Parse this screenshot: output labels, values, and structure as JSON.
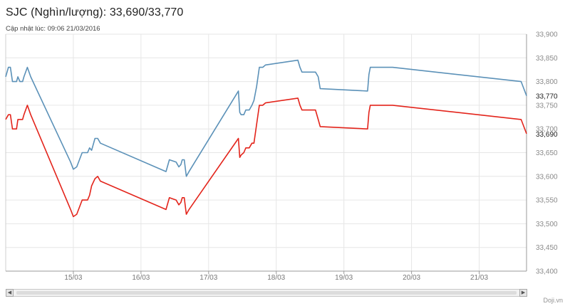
{
  "header": {
    "title": "SJC (Nghìn/lượng): 33,690/33,770",
    "updated": "Cập nhật lúc: 09:06 21/03/2016"
  },
  "credit": "Doji.vn",
  "scrollbar": {
    "left_icon": "arrow-left-icon",
    "right_icon": "arrow-right-icon"
  },
  "chart_data": {
    "type": "line",
    "x_unit": "day",
    "x_range": [
      14.0,
      21.7
    ],
    "xticks": [
      {
        "x": 15,
        "label": "15/03"
      },
      {
        "x": 16,
        "label": "16/03"
      },
      {
        "x": 17,
        "label": "17/03"
      },
      {
        "x": 18,
        "label": "18/03"
      },
      {
        "x": 19,
        "label": "19/03"
      },
      {
        "x": 20,
        "label": "20/03"
      },
      {
        "x": 21,
        "label": "21/03"
      }
    ],
    "ylim": [
      33400,
      33900
    ],
    "yticks": [
      33400,
      33450,
      33500,
      33550,
      33600,
      33650,
      33700,
      33750,
      33800,
      33850,
      33900
    ],
    "ytick_labels": [
      "33,400",
      "33,450",
      "33,500",
      "33,550",
      "33,600",
      "33,650",
      "33,700",
      "33,750",
      "33,800",
      "33,850",
      "33,900"
    ],
    "grid": true,
    "series": [
      {
        "color": "#5b91b8",
        "end_label": "33,770",
        "points": [
          [
            14.0,
            33810
          ],
          [
            14.04,
            33830
          ],
          [
            14.07,
            33830
          ],
          [
            14.1,
            33800
          ],
          [
            14.16,
            33800
          ],
          [
            14.18,
            33810
          ],
          [
            14.21,
            33800
          ],
          [
            14.25,
            33800
          ],
          [
            14.27,
            33810
          ],
          [
            14.32,
            33830
          ],
          [
            14.37,
            33810
          ],
          [
            14.96,
            33630
          ],
          [
            15.0,
            33615
          ],
          [
            15.05,
            33620
          ],
          [
            15.13,
            33650
          ],
          [
            15.21,
            33650
          ],
          [
            15.24,
            33660
          ],
          [
            15.27,
            33655
          ],
          [
            15.32,
            33680
          ],
          [
            15.36,
            33680
          ],
          [
            15.4,
            33670
          ],
          [
            16.37,
            33610
          ],
          [
            16.42,
            33635
          ],
          [
            16.52,
            33630
          ],
          [
            16.56,
            33620
          ],
          [
            16.59,
            33625
          ],
          [
            16.61,
            33635
          ],
          [
            16.64,
            33635
          ],
          [
            16.67,
            33600
          ],
          [
            16.71,
            33610
          ],
          [
            17.44,
            33780
          ],
          [
            17.46,
            33735
          ],
          [
            17.48,
            33730
          ],
          [
            17.52,
            33730
          ],
          [
            17.55,
            33740
          ],
          [
            17.6,
            33740
          ],
          [
            17.64,
            33750
          ],
          [
            17.67,
            33760
          ],
          [
            17.71,
            33790
          ],
          [
            17.75,
            33830
          ],
          [
            17.8,
            33830
          ],
          [
            17.84,
            33835
          ],
          [
            18.32,
            33845
          ],
          [
            18.35,
            33830
          ],
          [
            18.38,
            33820
          ],
          [
            18.58,
            33820
          ],
          [
            18.62,
            33810
          ],
          [
            18.65,
            33785
          ],
          [
            19.35,
            33780
          ],
          [
            19.37,
            33815
          ],
          [
            19.39,
            33830
          ],
          [
            19.72,
            33830
          ],
          [
            21.62,
            33800
          ],
          [
            21.7,
            33770
          ]
        ]
      },
      {
        "color": "#e3241b",
        "end_label": "33,690",
        "points": [
          [
            14.0,
            33720
          ],
          [
            14.04,
            33730
          ],
          [
            14.07,
            33730
          ],
          [
            14.1,
            33700
          ],
          [
            14.16,
            33700
          ],
          [
            14.18,
            33720
          ],
          [
            14.21,
            33720
          ],
          [
            14.25,
            33720
          ],
          [
            14.27,
            33730
          ],
          [
            14.32,
            33750
          ],
          [
            14.37,
            33730
          ],
          [
            14.96,
            33530
          ],
          [
            15.0,
            33515
          ],
          [
            15.05,
            33520
          ],
          [
            15.13,
            33550
          ],
          [
            15.21,
            33550
          ],
          [
            15.24,
            33560
          ],
          [
            15.27,
            33580
          ],
          [
            15.32,
            33595
          ],
          [
            15.36,
            33600
          ],
          [
            15.4,
            33590
          ],
          [
            16.37,
            33530
          ],
          [
            16.42,
            33555
          ],
          [
            16.52,
            33550
          ],
          [
            16.56,
            33540
          ],
          [
            16.59,
            33545
          ],
          [
            16.61,
            33555
          ],
          [
            16.64,
            33555
          ],
          [
            16.67,
            33520
          ],
          [
            16.71,
            33530
          ],
          [
            17.44,
            33680
          ],
          [
            17.46,
            33640
          ],
          [
            17.48,
            33645
          ],
          [
            17.52,
            33650
          ],
          [
            17.55,
            33660
          ],
          [
            17.6,
            33660
          ],
          [
            17.64,
            33670
          ],
          [
            17.67,
            33670
          ],
          [
            17.71,
            33710
          ],
          [
            17.75,
            33750
          ],
          [
            17.8,
            33750
          ],
          [
            17.84,
            33755
          ],
          [
            18.32,
            33765
          ],
          [
            18.35,
            33750
          ],
          [
            18.38,
            33740
          ],
          [
            18.58,
            33740
          ],
          [
            18.62,
            33720
          ],
          [
            18.65,
            33705
          ],
          [
            19.35,
            33700
          ],
          [
            19.37,
            33735
          ],
          [
            19.39,
            33750
          ],
          [
            19.72,
            33750
          ],
          [
            21.62,
            33720
          ],
          [
            21.7,
            33690
          ]
        ]
      }
    ]
  }
}
